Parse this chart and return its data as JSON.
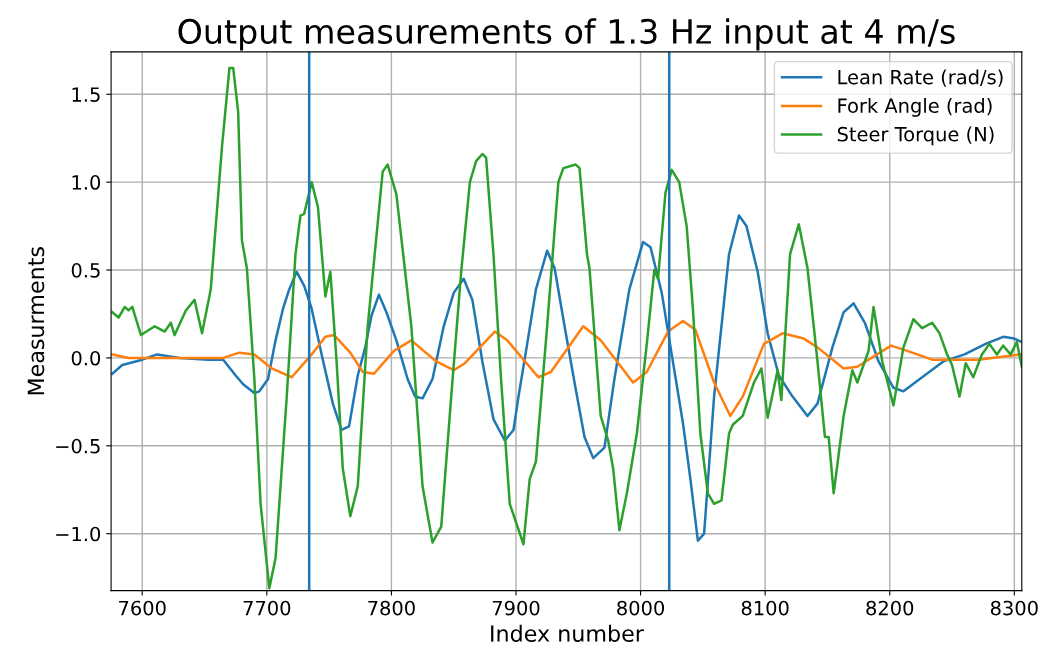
{
  "chart_data": {
    "type": "line",
    "title": "Output measurements of 1.3 Hz input at 4 m/s",
    "xlabel": "Index number",
    "ylabel": "Measurments",
    "xlim": [
      7575,
      8306
    ],
    "ylim": [
      -1.324,
      1.741
    ],
    "xticks": [
      7600,
      7700,
      7800,
      7900,
      8000,
      8100,
      8200,
      8300
    ],
    "yticks": [
      {
        "value": -1.0,
        "label": "−1.0"
      },
      {
        "value": -0.5,
        "label": "−0.5"
      },
      {
        "value": 0.0,
        "label": "0.0"
      },
      {
        "value": 0.5,
        "label": "0.5"
      },
      {
        "value": 1.0,
        "label": "1.0"
      },
      {
        "value": 1.5,
        "label": "1.5"
      }
    ],
    "grid": true,
    "legend": "top right",
    "ref_lines": [
      {
        "axis": "x",
        "value": 7734,
        "color": "#1f77b4"
      },
      {
        "axis": "x",
        "value": 8023,
        "color": "#1f77b4"
      }
    ],
    "series": [
      {
        "name": "Lean Rate (rad/s)",
        "color": "#1f77b4",
        "x": [
          7576,
          7584,
          7600,
          7612,
          7630,
          7653,
          7665,
          7675,
          7681,
          7690,
          7694,
          7701,
          7707,
          7713,
          7718,
          7724,
          7730,
          7736,
          7744,
          7753,
          7760,
          7766,
          7773,
          7779,
          7784,
          7790,
          7796,
          7804,
          7813,
          7819,
          7825,
          7833,
          7842,
          7850,
          7858,
          7865,
          7873,
          7882,
          7891,
          7898,
          7902,
          7909,
          7916,
          7925,
          7931,
          7939,
          7948,
          7955,
          7962,
          7971,
          7979,
          7991,
          8002,
          8008,
          8017,
          8025,
          8034,
          8040,
          8046,
          8051,
          8059,
          8071,
          8079,
          8085,
          8094,
          8102,
          8111,
          8122,
          8134,
          8142,
          8154,
          8163,
          8171,
          8180,
          8191,
          8203,
          8211,
          8226,
          8243,
          8260,
          8277,
          8291,
          8300,
          8306
        ],
        "values": [
          -0.09,
          -0.04,
          -0.01,
          0.02,
          0.0,
          -0.01,
          -0.01,
          -0.1,
          -0.15,
          -0.2,
          -0.19,
          -0.12,
          0.1,
          0.28,
          0.39,
          0.49,
          0.41,
          0.28,
          0.02,
          -0.26,
          -0.41,
          -0.39,
          -0.1,
          0.06,
          0.24,
          0.36,
          0.26,
          0.1,
          -0.12,
          -0.22,
          -0.23,
          -0.12,
          0.18,
          0.37,
          0.45,
          0.33,
          -0.02,
          -0.35,
          -0.47,
          -0.41,
          -0.22,
          0.08,
          0.39,
          0.61,
          0.51,
          0.18,
          -0.18,
          -0.45,
          -0.57,
          -0.51,
          -0.12,
          0.39,
          0.66,
          0.63,
          0.37,
          0.02,
          -0.37,
          -0.69,
          -1.04,
          -1.0,
          -0.22,
          0.59,
          0.81,
          0.75,
          0.49,
          0.14,
          -0.1,
          -0.22,
          -0.33,
          -0.26,
          0.06,
          0.26,
          0.31,
          0.2,
          -0.02,
          -0.17,
          -0.19,
          -0.11,
          -0.02,
          0.02,
          0.08,
          0.12,
          0.11,
          0.09
        ]
      },
      {
        "name": "Fork Angle (rad)",
        "color": "#ff7f0e",
        "x": [
          7576,
          7589,
          7665,
          7678,
          7690,
          7704,
          7720,
          7736,
          7747,
          7754,
          7767,
          7777,
          7786,
          7802,
          7816,
          7836,
          7850,
          7859,
          7883,
          7893,
          7918,
          7928,
          7954,
          7968,
          7994,
          8005,
          8022,
          8034,
          8044,
          8059,
          8072,
          8082,
          8099,
          8114,
          8131,
          8142,
          8163,
          8174,
          8201,
          8214,
          8234,
          8271,
          8306
        ],
        "values": [
          0.02,
          0.0,
          0.0,
          0.03,
          0.02,
          -0.06,
          -0.11,
          0.02,
          0.12,
          0.13,
          0.03,
          -0.08,
          -0.09,
          0.04,
          0.1,
          -0.02,
          -0.07,
          -0.03,
          0.15,
          0.1,
          -0.11,
          -0.08,
          0.18,
          0.1,
          -0.14,
          -0.08,
          0.15,
          0.21,
          0.16,
          -0.14,
          -0.33,
          -0.22,
          0.08,
          0.14,
          0.11,
          0.06,
          -0.06,
          -0.05,
          0.07,
          0.04,
          -0.01,
          -0.01,
          0.02
        ]
      },
      {
        "name": "Steer Torque (N)",
        "color": "#2ca02c",
        "x": [
          7576,
          7581,
          7586,
          7589,
          7592,
          7599,
          7610,
          7618,
          7623,
          7626,
          7635,
          7642,
          7648,
          7655,
          7664,
          7670,
          7673,
          7677,
          7680,
          7684,
          7690,
          7695,
          7702,
          7707,
          7716,
          7723,
          7727,
          7730,
          7736,
          7741,
          7747,
          7751,
          7756,
          7761,
          7767,
          7773,
          7781,
          7793,
          7797,
          7804,
          7816,
          7825,
          7833,
          7840,
          7848,
          7856,
          7863,
          7868,
          7873,
          7876,
          7882,
          7888,
          7895,
          7906,
          7911,
          7916,
          7925,
          7934,
          7938,
          7948,
          7951,
          7957,
          7959,
          7968,
          7974,
          7978,
          7983,
          7989,
          7997,
          8005,
          8011,
          8014,
          8020,
          8025,
          8031,
          8037,
          8042,
          8048,
          8054,
          8059,
          8065,
          8071,
          8074,
          8082,
          8091,
          8097,
          8102,
          8110,
          8113,
          8120,
          8127,
          8134,
          8142,
          8148,
          8151,
          8155,
          8163,
          8170,
          8174,
          8183,
          8187,
          8194,
          8203,
          8211,
          8219,
          8226,
          8234,
          8240,
          8246,
          8250,
          8256,
          8261,
          8267,
          8274,
          8280,
          8286,
          8291,
          8297,
          8302,
          8306
        ],
        "values": [
          0.26,
          0.23,
          0.29,
          0.27,
          0.29,
          0.13,
          0.18,
          0.15,
          0.2,
          0.13,
          0.27,
          0.33,
          0.14,
          0.39,
          1.2,
          1.65,
          1.65,
          1.4,
          0.67,
          0.51,
          -0.12,
          -0.83,
          -1.31,
          -1.14,
          -0.22,
          0.59,
          0.81,
          0.82,
          1.0,
          0.86,
          0.35,
          0.49,
          -0.02,
          -0.63,
          -0.9,
          -0.73,
          0.18,
          1.06,
          1.1,
          0.93,
          0.18,
          -0.73,
          -1.05,
          -0.96,
          -0.22,
          0.49,
          1.0,
          1.12,
          1.16,
          1.14,
          0.58,
          -0.12,
          -0.83,
          -1.06,
          -0.69,
          -0.59,
          0.18,
          1.0,
          1.08,
          1.1,
          1.08,
          0.59,
          0.51,
          -0.33,
          -0.47,
          -0.63,
          -0.98,
          -0.77,
          -0.43,
          0.08,
          0.5,
          0.45,
          0.94,
          1.07,
          1.0,
          0.75,
          0.28,
          -0.43,
          -0.77,
          -0.83,
          -0.81,
          -0.43,
          -0.38,
          -0.33,
          -0.14,
          -0.06,
          -0.34,
          -0.07,
          -0.24,
          0.59,
          0.76,
          0.51,
          -0.02,
          -0.45,
          -0.45,
          -0.77,
          -0.33,
          -0.07,
          -0.14,
          0.04,
          0.29,
          -0.02,
          -0.27,
          0.06,
          0.22,
          0.17,
          0.2,
          0.14,
          0.02,
          -0.04,
          -0.22,
          -0.03,
          -0.11,
          0.02,
          0.08,
          0.02,
          0.07,
          0.02,
          0.09,
          -0.05
        ]
      }
    ]
  }
}
